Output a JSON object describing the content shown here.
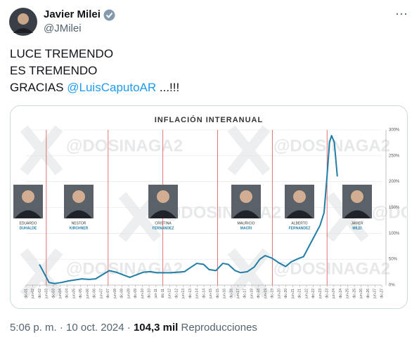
{
  "header": {
    "name": "Javier Milei",
    "handle": "@JMilei",
    "more": "⋯"
  },
  "text": {
    "lines": [
      "LUCE TREMENDO",
      "ES TREMENDO"
    ],
    "line3": {
      "before": "GRACIAS",
      "mention": "@LuisCaputoAR",
      "after": "...!!!"
    }
  },
  "footer": {
    "time": "5:06 p. m.",
    "separator": "·",
    "date": "10 oct. 2024",
    "views": "104,3 mil",
    "views_label": "Reproducciones"
  },
  "chart_data": {
    "type": "line",
    "title": "INFLACIÓN INTERANUAL",
    "watermark": "@DOSINAGA2",
    "color": "#1f7ea6",
    "grid": true,
    "x": [
      2002.9,
      2003.2,
      2003.6,
      2004.0,
      2004.5,
      2005.0,
      2005.5,
      2006.0,
      2006.5,
      2007.0,
      2007.5,
      2008.0,
      2008.5,
      2009.0,
      2009.5,
      2010.0,
      2010.5,
      2011.0,
      2011.5,
      2012.0,
      2012.5,
      2013.0,
      2013.5,
      2014.0,
      2014.4,
      2014.9,
      2015.3,
      2015.8,
      2016.3,
      2016.7,
      2017.2,
      2017.6,
      2018.1,
      2018.6,
      2019.0,
      2019.4,
      2019.9,
      2020.4,
      2020.9,
      2021.3,
      2021.8,
      2022.2,
      2022.6,
      2023.0,
      2023.4,
      2023.7,
      2023.92,
      2024.1,
      2024.25,
      2024.45,
      2024.67
    ],
    "values": [
      40,
      25,
      5,
      3,
      5,
      8,
      10,
      12,
      11,
      12,
      20,
      28,
      25,
      20,
      15,
      20,
      25,
      26,
      24,
      24,
      24,
      25,
      26,
      35,
      42,
      40,
      30,
      28,
      42,
      40,
      28,
      24,
      26,
      35,
      50,
      57,
      52,
      43,
      36,
      45,
      51,
      55,
      75,
      95,
      115,
      140,
      211,
      276,
      289,
      276,
      210
    ],
    "ylim": [
      0,
      300
    ],
    "yticks": [
      {
        "value": 0,
        "label": "0%"
      },
      {
        "value": 50,
        "label": "50%"
      },
      {
        "value": 100,
        "label": "100%"
      },
      {
        "value": 150,
        "label": "150%"
      },
      {
        "value": 200,
        "label": "200%"
      },
      {
        "value": 250,
        "label": "250%"
      },
      {
        "value": 300,
        "label": "300%"
      }
    ],
    "xlim": [
      2001.917,
      2027.917
    ],
    "xticks": [
      {
        "value": 2001.917,
        "label": "dic-01"
      },
      {
        "value": 2002.417,
        "label": "jun-02"
      },
      {
        "value": 2002.917,
        "label": "dic-02"
      },
      {
        "value": 2003.417,
        "label": "jun-03"
      },
      {
        "value": 2003.917,
        "label": "dic-03"
      },
      {
        "value": 2004.417,
        "label": "jun-04"
      },
      {
        "value": 2004.917,
        "label": "dic-04"
      },
      {
        "value": 2005.417,
        "label": "jun-05"
      },
      {
        "value": 2005.917,
        "label": "dic-05"
      },
      {
        "value": 2006.417,
        "label": "jun-06"
      },
      {
        "value": 2006.917,
        "label": "dic-06"
      },
      {
        "value": 2007.417,
        "label": "jun-07"
      },
      {
        "value": 2007.917,
        "label": "dic-07"
      },
      {
        "value": 2008.417,
        "label": "jun-08"
      },
      {
        "value": 2008.917,
        "label": "dic-08"
      },
      {
        "value": 2009.417,
        "label": "jun-09"
      },
      {
        "value": 2009.917,
        "label": "dic-09"
      },
      {
        "value": 2010.417,
        "label": "jun-10"
      },
      {
        "value": 2010.917,
        "label": "dic-10"
      },
      {
        "value": 2011.417,
        "label": "jun-11"
      },
      {
        "value": 2011.917,
        "label": "dic-11"
      },
      {
        "value": 2012.417,
        "label": "jun-12"
      },
      {
        "value": 2012.917,
        "label": "dic-12"
      },
      {
        "value": 2013.417,
        "label": "jun-13"
      },
      {
        "value": 2013.917,
        "label": "dic-13"
      },
      {
        "value": 2014.417,
        "label": "jun-14"
      },
      {
        "value": 2014.917,
        "label": "dic-14"
      },
      {
        "value": 2015.417,
        "label": "jun-15"
      },
      {
        "value": 2015.917,
        "label": "dic-15"
      },
      {
        "value": 2016.417,
        "label": "jun-16"
      },
      {
        "value": 2016.917,
        "label": "dic-16"
      },
      {
        "value": 2017.417,
        "label": "jun-17"
      },
      {
        "value": 2017.917,
        "label": "dic-17"
      },
      {
        "value": 2018.417,
        "label": "jun-18"
      },
      {
        "value": 2018.917,
        "label": "dic-18"
      },
      {
        "value": 2019.417,
        "label": "jun-19"
      },
      {
        "value": 2019.917,
        "label": "dic-19"
      },
      {
        "value": 2020.417,
        "label": "jun-20"
      },
      {
        "value": 2020.917,
        "label": "dic-20"
      },
      {
        "value": 2021.417,
        "label": "jun-21"
      },
      {
        "value": 2021.917,
        "label": "dic-21"
      },
      {
        "value": 2022.417,
        "label": "jun-22"
      },
      {
        "value": 2022.917,
        "label": "dic-22"
      },
      {
        "value": 2023.417,
        "label": "jun-23"
      },
      {
        "value": 2023.917,
        "label": "dic-23"
      },
      {
        "value": 2024.417,
        "label": "jun-24"
      },
      {
        "value": 2024.917,
        "label": "dic-24"
      },
      {
        "value": 2025.417,
        "label": "jun-25"
      },
      {
        "value": 2025.917,
        "label": "dic-25"
      },
      {
        "value": 2026.417,
        "label": "jun-26"
      },
      {
        "value": 2026.917,
        "label": "dic-26"
      },
      {
        "value": 2027.417,
        "label": "jun-27"
      },
      {
        "value": 2027.917,
        "label": "dic-27"
      }
    ],
    "transitions": [
      2003.4,
      2007.92,
      2011.92,
      2015.92,
      2019.92,
      2023.92
    ],
    "presidents": [
      {
        "first": "EDUARDO",
        "last": "DUHALDE"
      },
      {
        "first": "NESTOR",
        "last": "KIRCHNER"
      },
      {
        "first": "CRISTINA",
        "last": "FERNANDEZ"
      },
      {
        "first": "MAURICIO",
        "last": "MACRI"
      },
      {
        "first": "ALBERTO",
        "last": "FERNANDEZ"
      },
      {
        "first": "JAVIER",
        "last": "MILEI"
      }
    ]
  }
}
